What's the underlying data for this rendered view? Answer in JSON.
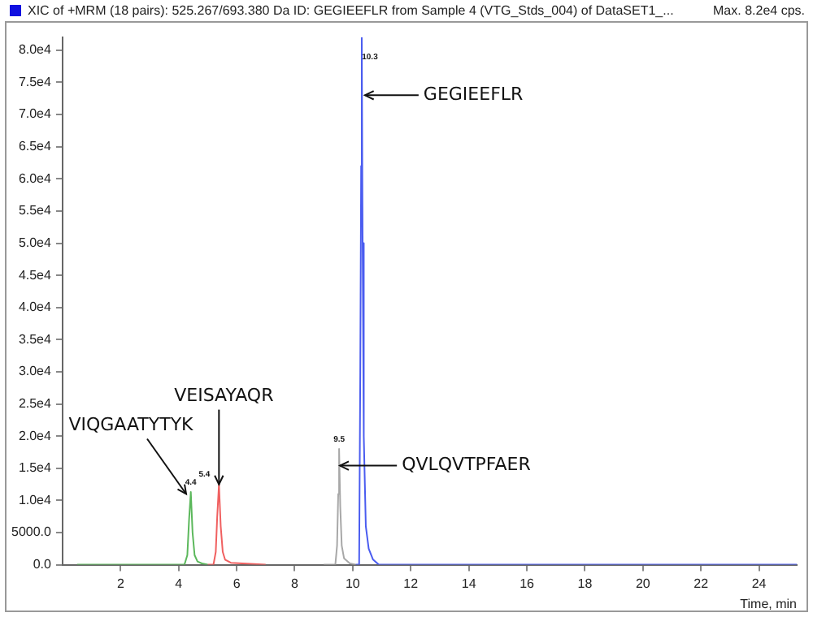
{
  "chart_data": {
    "type": "line",
    "title": "XIC of +MRM (18 pairs): 525.267/693.380 Da ID: GEGIEEFLR from Sample 4 (VTG_Stds_004) of DataSET1_...",
    "subtitle": "Max. 8.2e4 cps.",
    "xlabel": "Time, min",
    "series": [
      {
        "color": "#5cb85c",
        "x": [
          0.5,
          4.2,
          4.3,
          4.36,
          4.42,
          4.48,
          4.55,
          4.65,
          4.8,
          5.0
        ],
        "values": [
          0,
          0,
          1500,
          7000,
          11300,
          5000,
          1500,
          500,
          200,
          0
        ]
      },
      {
        "color": "#f06060",
        "x": [
          5.0,
          5.2,
          5.28,
          5.33,
          5.39,
          5.45,
          5.52,
          5.6,
          5.8,
          7.0
        ],
        "values": [
          0,
          0,
          2000,
          7500,
          12500,
          6000,
          2000,
          800,
          300,
          0
        ]
      },
      {
        "color": "#a8a8a8",
        "x": [
          9.0,
          9.4,
          9.46,
          9.5,
          9.53,
          9.57,
          9.62,
          9.7,
          9.9,
          10.1
        ],
        "values": [
          0,
          0,
          3000,
          11000,
          18000,
          9000,
          3000,
          1000,
          200,
          0
        ]
      },
      {
        "color": "#4a5cf0",
        "x": [
          10.1,
          10.22,
          10.26,
          10.29,
          10.31,
          10.34,
          10.38,
          10.45,
          10.55,
          10.7,
          10.9,
          25.3
        ],
        "values": [
          0,
          0,
          30000,
          62000,
          82000,
          50000,
          20000,
          6000,
          2500,
          800,
          0,
          0
        ]
      }
    ],
    "xlim": [
      0,
      25.3
    ],
    "xticks": [
      2,
      4,
      6,
      8,
      10,
      12,
      14,
      16,
      18,
      20,
      22,
      24
    ],
    "ylim": [
      0,
      82000
    ],
    "yticks": [
      {
        "value": 0,
        "label": "0.0"
      },
      {
        "value": 5000,
        "label": "5000.0"
      },
      {
        "value": 10000,
        "label": "1.0e4"
      },
      {
        "value": 15000,
        "label": "1.5e4"
      },
      {
        "value": 20000,
        "label": "2.0e4"
      },
      {
        "value": 25000,
        "label": "2.5e4"
      },
      {
        "value": 30000,
        "label": "3.0e4"
      },
      {
        "value": 35000,
        "label": "3.5e4"
      },
      {
        "value": 40000,
        "label": "4.0e4"
      },
      {
        "value": 45000,
        "label": "4.5e4"
      },
      {
        "value": 50000,
        "label": "5.0e4"
      },
      {
        "value": 55000,
        "label": "5.5e4"
      },
      {
        "value": 60000,
        "label": "6.0e4"
      },
      {
        "value": 65000,
        "label": "6.5e4"
      },
      {
        "value": 70000,
        "label": "7.0e4"
      },
      {
        "value": 75000,
        "label": "7.5e4"
      },
      {
        "value": 80000,
        "label": "8.0e4"
      }
    ],
    "grid": false,
    "legend": false,
    "marker": "none",
    "line_style": "solid",
    "annotations": [
      {
        "text": "4.4",
        "x": 4.42,
        "y": 11300
      },
      {
        "text": "5.4",
        "x": 5.39,
        "y": 12500
      },
      {
        "text": "9.5",
        "x": 9.53,
        "y": 18000
      },
      {
        "text": "10.3",
        "x": 10.31,
        "y": 82000
      },
      {
        "text": "VIQGAATYTYK",
        "x": 4.26,
        "y": 11000
      },
      {
        "text": "VEISAYAQR",
        "x": 5.39,
        "y": 12500
      },
      {
        "text": "QVLQVTPFAER",
        "x": 9.56,
        "y": 15400
      },
      {
        "text": "GEGIEEFLR",
        "x": 10.42,
        "y": 73000
      }
    ]
  }
}
